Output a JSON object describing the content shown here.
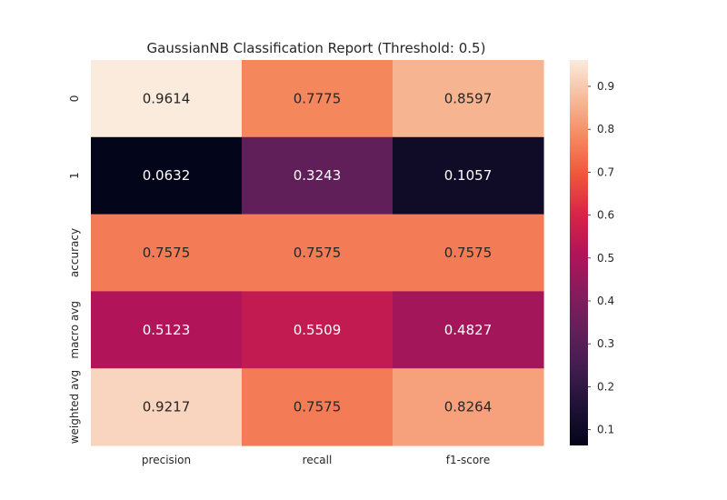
{
  "chart_data": {
    "type": "heatmap",
    "title": "GaussianNB Classification Report (Threshold: 0.5)",
    "xlabel": "",
    "ylabel": "",
    "x_categories": [
      "precision",
      "recall",
      "f1-score"
    ],
    "y_categories": [
      "0",
      "1",
      "accuracy",
      "macro avg",
      "weighted avg"
    ],
    "values": [
      [
        0.9614,
        0.7775,
        0.8597
      ],
      [
        0.0632,
        0.3243,
        0.1057
      ],
      [
        0.7575,
        0.7575,
        0.7575
      ],
      [
        0.5123,
        0.5509,
        0.4827
      ],
      [
        0.9217,
        0.7575,
        0.8264
      ]
    ],
    "annotation_format": "0.0000",
    "colorbar": {
      "vmin": 0.0632,
      "vmax": 0.9614,
      "ticks": [
        0.1,
        0.2,
        0.3,
        0.4,
        0.5,
        0.6,
        0.7,
        0.8,
        0.9
      ],
      "tick_labels": [
        "0.1",
        "0.2",
        "0.3",
        "0.4",
        "0.5",
        "0.6",
        "0.7",
        "0.8",
        "0.9"
      ],
      "colormap": "rocket"
    },
    "grid": false
  }
}
